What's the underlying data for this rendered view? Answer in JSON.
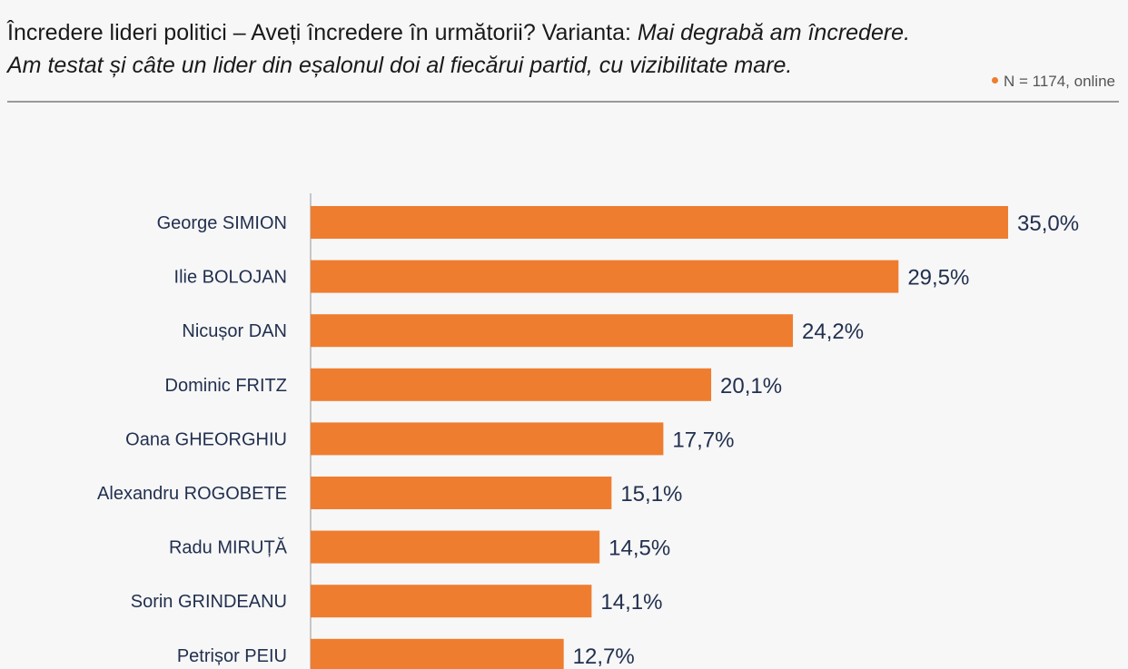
{
  "header": {
    "title_line1_plain": "Încredere lideri politici – Aveți încredere în următorii? Varianta: ",
    "title_line1_italic": "Mai degrabă am încredere.",
    "title_line2_italic": "Am testat și câte un lider din eșalonul doi al fiecărui partid, cu vizibilitate mare.",
    "sample_note": "N = 1174, online"
  },
  "colors": {
    "bar": "#ef7d2f",
    "dot": "#ef7d2f",
    "axis": "#b5b5b5"
  },
  "chart_data": {
    "type": "bar",
    "orientation": "horizontal",
    "categories": [
      "George SIMION",
      "Ilie BOLOJAN",
      "Nicușor DAN",
      "Dominic FRITZ",
      "Oana GHEORGHIU",
      "Alexandru ROGOBETE",
      "Radu MIRUȚĂ",
      "Sorin GRINDEANU",
      "Petrișor PEIU"
    ],
    "values": [
      35.0,
      29.5,
      24.2,
      20.1,
      17.7,
      15.1,
      14.5,
      14.1,
      12.7
    ],
    "value_labels": [
      "35,0%",
      "29,5%",
      "24,2%",
      "20,1%",
      "17,7%",
      "15,1%",
      "14,5%",
      "14,1%",
      "12,7%"
    ],
    "title": "",
    "xlabel": "",
    "ylabel": "",
    "xlim": [
      0,
      35
    ],
    "grid": false,
    "legend": "none"
  }
}
